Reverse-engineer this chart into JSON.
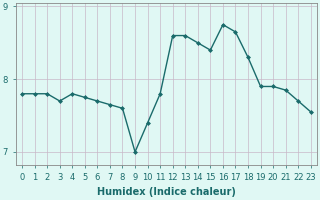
{
  "x": [
    0,
    1,
    2,
    3,
    4,
    5,
    6,
    7,
    8,
    9,
    10,
    11,
    12,
    13,
    14,
    15,
    16,
    17,
    18,
    19,
    20,
    21,
    22,
    23
  ],
  "y": [
    7.8,
    7.8,
    7.8,
    7.7,
    7.8,
    7.75,
    7.7,
    7.65,
    7.6,
    7.0,
    7.4,
    7.8,
    8.6,
    8.6,
    8.5,
    8.4,
    8.75,
    8.65,
    8.3,
    7.9,
    7.9,
    7.85,
    7.7,
    7.55
  ],
  "title": "",
  "xlabel": "Humidex (Indice chaleur)",
  "ylabel": "",
  "xlim": [
    -0.5,
    23.5
  ],
  "ylim": [
    6.82,
    9.05
  ],
  "yticks": [
    7,
    8,
    9
  ],
  "xticks": [
    0,
    1,
    2,
    3,
    4,
    5,
    6,
    7,
    8,
    9,
    10,
    11,
    12,
    13,
    14,
    15,
    16,
    17,
    18,
    19,
    20,
    21,
    22,
    23
  ],
  "line_color": "#1a6b6b",
  "bg_color": "#e0f8f4",
  "grid_color_v": "#c8b8c8",
  "grid_color_h": "#c8b8c8",
  "marker": "D",
  "markersize": 2,
  "linewidth": 1.0,
  "xlabel_fontsize": 7,
  "tick_fontsize": 6,
  "tick_color": "#1a6b6b"
}
